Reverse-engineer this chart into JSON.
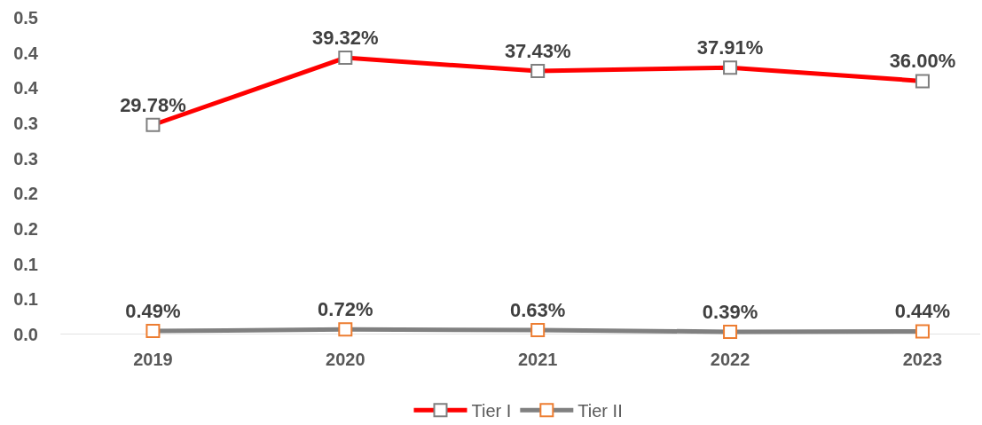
{
  "chart_data": {
    "type": "line",
    "categories": [
      "2019",
      "2020",
      "2021",
      "2022",
      "2023"
    ],
    "series": [
      {
        "name": "Tier I",
        "color": "#ff0000",
        "values": [
          0.2978,
          0.3932,
          0.3743,
          0.3791,
          0.36
        ],
        "value_labels": [
          "29.78%",
          "39.32%",
          "37.43%",
          "37.91%",
          "36.00%"
        ]
      },
      {
        "name": "Tier II",
        "color": "#808080",
        "values": [
          0.0049,
          0.0072,
          0.0063,
          0.0039,
          0.0044
        ],
        "value_labels": [
          "0.49%",
          "0.72%",
          "0.63%",
          "0.39%",
          "0.44%"
        ]
      }
    ],
    "ylim": [
      0,
      0.45
    ],
    "yticks": [
      {
        "value": 0,
        "label": "0.0"
      },
      {
        "value": 0.05,
        "label": "0.1"
      },
      {
        "value": 0.1,
        "label": "0.1"
      },
      {
        "value": 0.15,
        "label": "0.2"
      },
      {
        "value": 0.2,
        "label": "0.2"
      },
      {
        "value": 0.25,
        "label": "0.3"
      },
      {
        "value": 0.3,
        "label": "0.3"
      },
      {
        "value": 0.35,
        "label": "0.4"
      },
      {
        "value": 0.4,
        "label": "0.4"
      },
      {
        "value": 0.45,
        "label": "0.5"
      }
    ],
    "grid": false,
    "legend": "bottom",
    "marker": "square",
    "line_style": "solid"
  }
}
